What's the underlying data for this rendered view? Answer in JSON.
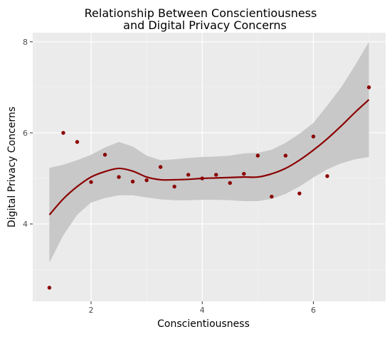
{
  "chart_data": {
    "type": "scatter",
    "title_lines": [
      "Relationship Between Conscientiousness",
      "and Digital Privacy Concerns"
    ],
    "xlabel": "Conscientiousness",
    "ylabel": "Digital Privacy Concerns",
    "xlim": [
      0.95,
      7.3
    ],
    "ylim": [
      2.3,
      8.2
    ],
    "x_ticks": [
      2,
      4,
      6
    ],
    "x_tick_labels": [
      "2",
      "4",
      "6"
    ],
    "y_ticks": [
      4,
      6,
      8
    ],
    "y_tick_labels": [
      "4",
      "6",
      "8"
    ],
    "grid": true,
    "legend": "none",
    "points": [
      {
        "x": 1.25,
        "y": 2.6
      },
      {
        "x": 1.5,
        "y": 6.0
      },
      {
        "x": 1.75,
        "y": 5.8
      },
      {
        "x": 2.0,
        "y": 4.92
      },
      {
        "x": 2.25,
        "y": 5.52
      },
      {
        "x": 2.5,
        "y": 5.03
      },
      {
        "x": 2.75,
        "y": 4.93
      },
      {
        "x": 3.0,
        "y": 4.96
      },
      {
        "x": 3.25,
        "y": 5.25
      },
      {
        "x": 3.5,
        "y": 4.82
      },
      {
        "x": 3.75,
        "y": 5.08
      },
      {
        "x": 4.0,
        "y": 5.0
      },
      {
        "x": 4.25,
        "y": 5.08
      },
      {
        "x": 4.5,
        "y": 4.9
      },
      {
        "x": 4.75,
        "y": 5.1
      },
      {
        "x": 5.0,
        "y": 5.5
      },
      {
        "x": 5.25,
        "y": 4.6
      },
      {
        "x": 5.5,
        "y": 5.5
      },
      {
        "x": 5.75,
        "y": 4.67
      },
      {
        "x": 6.0,
        "y": 5.92
      },
      {
        "x": 6.25,
        "y": 5.05
      },
      {
        "x": 7.0,
        "y": 7.0
      }
    ],
    "smooth": [
      {
        "x": 1.25,
        "y": 4.2,
        "lo": 3.15,
        "hi": 5.23
      },
      {
        "x": 1.5,
        "y": 4.55,
        "lo": 3.75,
        "hi": 5.3
      },
      {
        "x": 1.75,
        "y": 4.82,
        "lo": 4.2,
        "hi": 5.4
      },
      {
        "x": 2.0,
        "y": 5.03,
        "lo": 4.47,
        "hi": 5.52
      },
      {
        "x": 2.25,
        "y": 5.15,
        "lo": 4.57,
        "hi": 5.68
      },
      {
        "x": 2.5,
        "y": 5.22,
        "lo": 4.63,
        "hi": 5.8
      },
      {
        "x": 2.75,
        "y": 5.16,
        "lo": 4.63,
        "hi": 5.7
      },
      {
        "x": 3.0,
        "y": 5.03,
        "lo": 4.58,
        "hi": 5.5
      },
      {
        "x": 3.25,
        "y": 4.97,
        "lo": 4.54,
        "hi": 5.4
      },
      {
        "x": 3.5,
        "y": 4.97,
        "lo": 4.52,
        "hi": 5.42
      },
      {
        "x": 3.75,
        "y": 4.98,
        "lo": 4.52,
        "hi": 5.45
      },
      {
        "x": 4.0,
        "y": 5.0,
        "lo": 4.53,
        "hi": 5.47
      },
      {
        "x": 4.25,
        "y": 5.01,
        "lo": 4.53,
        "hi": 5.48
      },
      {
        "x": 4.5,
        "y": 5.02,
        "lo": 4.52,
        "hi": 5.5
      },
      {
        "x": 4.75,
        "y": 5.03,
        "lo": 4.5,
        "hi": 5.55
      },
      {
        "x": 5.0,
        "y": 5.03,
        "lo": 4.5,
        "hi": 5.56
      },
      {
        "x": 5.25,
        "y": 5.1,
        "lo": 4.55,
        "hi": 5.63
      },
      {
        "x": 5.5,
        "y": 5.22,
        "lo": 4.66,
        "hi": 5.78
      },
      {
        "x": 5.75,
        "y": 5.4,
        "lo": 4.82,
        "hi": 5.98
      },
      {
        "x": 6.0,
        "y": 5.62,
        "lo": 5.02,
        "hi": 6.22
      },
      {
        "x": 6.25,
        "y": 5.87,
        "lo": 5.2,
        "hi": 6.6
      },
      {
        "x": 6.5,
        "y": 6.15,
        "lo": 5.33,
        "hi": 7.0
      },
      {
        "x": 6.75,
        "y": 6.45,
        "lo": 5.42,
        "hi": 7.48
      },
      {
        "x": 7.0,
        "y": 6.73,
        "lo": 5.47,
        "hi": 8.0
      }
    ]
  },
  "colors": {
    "panel": "#ebebeb",
    "grid_major": "#ffffff",
    "grid_minor": "#f5f5f5",
    "point": "#8b0000",
    "line": "#8b0000",
    "ribbon": "#c8c8c8",
    "axis_text": "#4d4d4d",
    "title_text": "#000000"
  }
}
